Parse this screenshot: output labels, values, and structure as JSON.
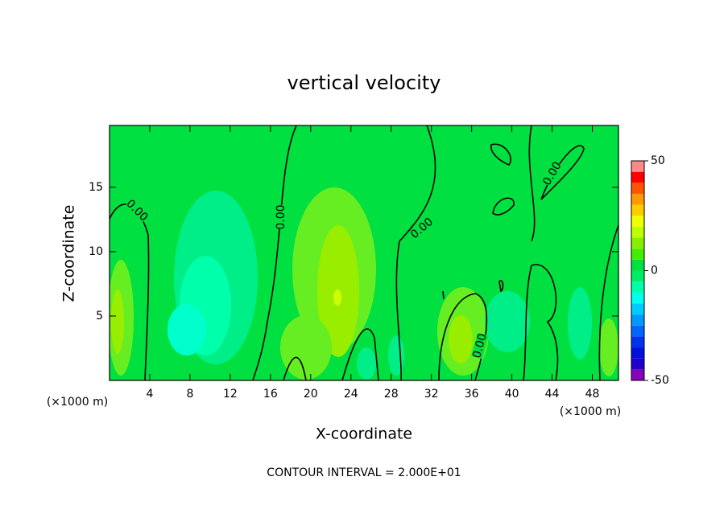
{
  "chart_data": {
    "type": "contour",
    "title": "vertical velocity",
    "xlabel": "X-coordinate",
    "ylabel": "Z-coordinate",
    "x_unit_left": "(×1000 m)",
    "x_unit_right": "(×1000 m)",
    "footnote": "CONTOUR INTERVAL = 2.000E+01",
    "xlim": [
      0,
      50.6
    ],
    "ylim": [
      0,
      19.8
    ],
    "xticks": [
      4,
      8,
      12,
      16,
      20,
      24,
      28,
      32,
      36,
      40,
      44,
      48
    ],
    "yticks": [
      5,
      10,
      15
    ],
    "contour_labels": [
      "0.00",
      "0.00",
      "0.00",
      "0.00",
      "0.00"
    ],
    "colorbar": {
      "levels": [
        -50,
        -45,
        -40,
        -35,
        -30,
        -25,
        -20,
        -15,
        -10,
        -5,
        0,
        5,
        10,
        15,
        20,
        25,
        30,
        35,
        40,
        45,
        50
      ],
      "colors": [
        "#8800bb",
        "#2200cc",
        "#0011dd",
        "#0033ee",
        "#0066ff",
        "#0099ff",
        "#00ccff",
        "#00ffee",
        "#00ffaa",
        "#00ee66",
        "#00e040",
        "#44ee00",
        "#88ee00",
        "#bbff00",
        "#eeff00",
        "#ffcc00",
        "#ff9900",
        "#ff5500",
        "#ff0000",
        "#ff8888"
      ],
      "ticks": [
        -50,
        0,
        50
      ]
    }
  }
}
